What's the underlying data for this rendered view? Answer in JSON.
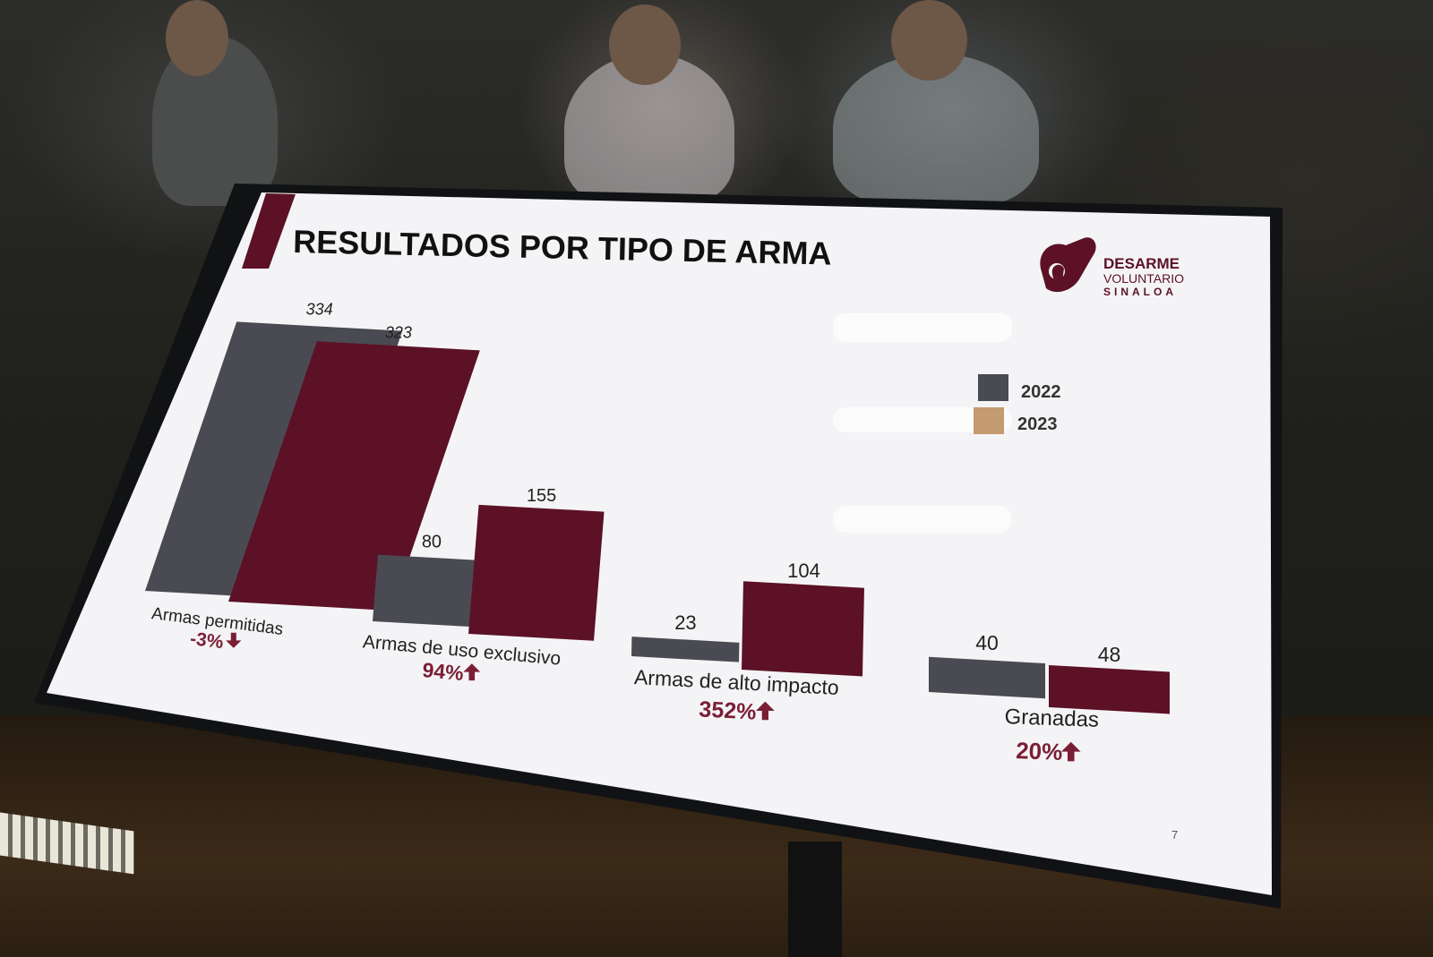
{
  "slide": {
    "title": "RESULTADOS POR TIPO DE ARMA",
    "logo": {
      "line1": "DESARME",
      "line2": "VOLUNTARIO",
      "line3": "SINALOA",
      "icon": "hands-icon"
    },
    "page_number": "7",
    "colors": {
      "bar_2022": "#4a4a52",
      "bar_2023": "#5c1126",
      "accent": "#7a1e36",
      "slide_bg": "#f4f4f6"
    }
  },
  "chart_data": {
    "type": "bar",
    "categories": [
      "Armas permitidas",
      "Armas de uso exclusivo",
      "Armas de alto impacto",
      "Granadas"
    ],
    "series": [
      {
        "name": "2022",
        "values": [
          334,
          80,
          23,
          40
        ]
      },
      {
        "name": "2023",
        "values": [
          323,
          155,
          104,
          48
        ]
      }
    ],
    "value_labels_2022": [
      "334",
      "80",
      "23",
      "40"
    ],
    "value_labels_2023": [
      "323",
      "155",
      "104",
      "48"
    ],
    "changes": [
      "-3%",
      "94%",
      "352%",
      "20%"
    ],
    "change_direction": [
      "down",
      "up",
      "up",
      "up"
    ],
    "legend": [
      "2022",
      "2023"
    ],
    "legend_position": "right"
  }
}
